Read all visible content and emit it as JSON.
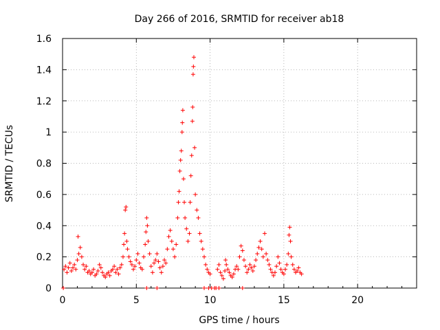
{
  "chart_data": {
    "type": "scatter",
    "title": "Day 266 of 2016, SRMTID for receiver ab18",
    "xlabel": "GPS time / hours",
    "ylabel": "SRMTID / TECUs",
    "xlim": [
      0,
      24
    ],
    "ylim": [
      0,
      1.6
    ],
    "xticks": [
      0,
      5,
      10,
      15,
      20
    ],
    "yticks": [
      0,
      0.2,
      0.4,
      0.6,
      0.8,
      1,
      1.2,
      1.4,
      1.6
    ],
    "xtick_labels": [
      "0",
      "5",
      "10",
      "15",
      "20"
    ],
    "ytick_labels": [
      "0",
      "0.2",
      "0.4",
      "0.6",
      "0.8",
      "1",
      "1.2",
      "1.4",
      "1.6"
    ],
    "grid": true,
    "marker": "plus",
    "color": "#ff0000",
    "series": [
      {
        "name": "SRMTID",
        "points": [
          [
            0.1,
            0.12
          ],
          [
            0.2,
            0.14
          ],
          [
            0.3,
            0.1
          ],
          [
            0.4,
            0.13
          ],
          [
            0.5,
            0.16
          ],
          [
            0.6,
            0.11
          ],
          [
            0.7,
            0.13
          ],
          [
            0.8,
            0.15
          ],
          [
            0.9,
            0.12
          ],
          [
            1.0,
            0.18
          ],
          [
            1.05,
            0.33
          ],
          [
            1.1,
            0.22
          ],
          [
            1.2,
            0.26
          ],
          [
            1.3,
            0.2
          ],
          [
            1.4,
            0.15
          ],
          [
            1.5,
            0.12
          ],
          [
            1.6,
            0.14
          ],
          [
            1.7,
            0.1
          ],
          [
            1.8,
            0.11
          ],
          [
            1.9,
            0.09
          ],
          [
            2.0,
            0.1
          ],
          [
            2.1,
            0.12
          ],
          [
            2.2,
            0.08
          ],
          [
            2.3,
            0.09
          ],
          [
            2.4,
            0.11
          ],
          [
            2.5,
            0.15
          ],
          [
            2.6,
            0.13
          ],
          [
            2.7,
            0.1
          ],
          [
            2.8,
            0.08
          ],
          [
            2.9,
            0.07
          ],
          [
            3.0,
            0.09
          ],
          [
            3.1,
            0.1
          ],
          [
            3.2,
            0.08
          ],
          [
            3.3,
            0.11
          ],
          [
            3.4,
            0.12
          ],
          [
            3.5,
            0.14
          ],
          [
            3.6,
            0.1
          ],
          [
            3.7,
            0.12
          ],
          [
            3.8,
            0.09
          ],
          [
            3.9,
            0.13
          ],
          [
            4.0,
            0.15
          ],
          [
            4.1,
            0.2
          ],
          [
            4.15,
            0.28
          ],
          [
            4.2,
            0.35
          ],
          [
            4.25,
            0.5
          ],
          [
            4.3,
            0.52
          ],
          [
            4.35,
            0.3
          ],
          [
            4.4,
            0.25
          ],
          [
            4.5,
            0.2
          ],
          [
            4.6,
            0.17
          ],
          [
            4.7,
            0.15
          ],
          [
            4.8,
            0.12
          ],
          [
            4.9,
            0.14
          ],
          [
            5.0,
            0.18
          ],
          [
            5.1,
            0.22
          ],
          [
            5.2,
            0.16
          ],
          [
            5.3,
            0.13
          ],
          [
            5.4,
            0.12
          ],
          [
            5.5,
            0.2
          ],
          [
            5.6,
            0.28
          ],
          [
            5.65,
            0.36
          ],
          [
            5.7,
            0.45
          ],
          [
            5.75,
            0.4
          ],
          [
            5.8,
            0.3
          ],
          [
            5.9,
            0.22
          ],
          [
            6.0,
            0.14
          ],
          [
            6.1,
            0.1
          ],
          [
            6.2,
            0.16
          ],
          [
            6.3,
            0.18
          ],
          [
            6.4,
            0.22
          ],
          [
            6.5,
            0.17
          ],
          [
            6.6,
            0.13
          ],
          [
            6.7,
            0.1
          ],
          [
            6.8,
            0.14
          ],
          [
            6.9,
            0.18
          ],
          [
            7.0,
            0.16
          ],
          [
            7.1,
            0.25
          ],
          [
            7.2,
            0.33
          ],
          [
            7.3,
            0.37
          ],
          [
            7.4,
            0.3
          ],
          [
            7.5,
            0.25
          ],
          [
            7.6,
            0.2
          ],
          [
            7.7,
            0.28
          ],
          [
            7.8,
            0.45
          ],
          [
            7.85,
            0.55
          ],
          [
            7.9,
            0.62
          ],
          [
            7.95,
            0.75
          ],
          [
            8.0,
            0.82
          ],
          [
            8.05,
            0.88
          ],
          [
            8.1,
            1.0
          ],
          [
            8.12,
            1.06
          ],
          [
            8.15,
            1.14
          ],
          [
            8.2,
            0.7
          ],
          [
            8.25,
            0.55
          ],
          [
            8.3,
            0.45
          ],
          [
            8.4,
            0.38
          ],
          [
            8.5,
            0.3
          ],
          [
            8.6,
            0.35
          ],
          [
            8.65,
            0.55
          ],
          [
            8.7,
            0.72
          ],
          [
            8.75,
            0.85
          ],
          [
            8.8,
            1.07
          ],
          [
            8.82,
            1.16
          ],
          [
            8.85,
            1.37
          ],
          [
            8.87,
            1.42
          ],
          [
            8.9,
            1.48
          ],
          [
            8.95,
            0.9
          ],
          [
            9.0,
            0.6
          ],
          [
            9.1,
            0.5
          ],
          [
            9.2,
            0.45
          ],
          [
            9.3,
            0.35
          ],
          [
            9.4,
            0.3
          ],
          [
            9.5,
            0.25
          ],
          [
            9.6,
            0.2
          ],
          [
            9.7,
            0.15
          ],
          [
            9.8,
            0.12
          ],
          [
            9.9,
            0.1
          ],
          [
            10.0,
            0.09
          ],
          [
            10.1,
            0.0
          ],
          [
            10.3,
            0.0
          ],
          [
            10.4,
            0.0
          ],
          [
            10.5,
            0.12
          ],
          [
            10.6,
            0.15
          ],
          [
            10.7,
            0.1
          ],
          [
            10.8,
            0.08
          ],
          [
            10.9,
            0.06
          ],
          [
            11.0,
            0.11
          ],
          [
            11.05,
            0.18
          ],
          [
            11.1,
            0.15
          ],
          [
            11.2,
            0.12
          ],
          [
            11.3,
            0.1
          ],
          [
            11.4,
            0.08
          ],
          [
            11.5,
            0.07
          ],
          [
            11.6,
            0.09
          ],
          [
            11.7,
            0.12
          ],
          [
            11.8,
            0.14
          ],
          [
            11.9,
            0.12
          ],
          [
            12.0,
            0.2
          ],
          [
            12.1,
            0.27
          ],
          [
            12.2,
            0.24
          ],
          [
            12.3,
            0.18
          ],
          [
            12.4,
            0.14
          ],
          [
            12.5,
            0.1
          ],
          [
            12.6,
            0.12
          ],
          [
            12.7,
            0.15
          ],
          [
            12.8,
            0.13
          ],
          [
            12.9,
            0.11
          ],
          [
            13.0,
            0.14
          ],
          [
            13.1,
            0.18
          ],
          [
            13.2,
            0.22
          ],
          [
            13.3,
            0.26
          ],
          [
            13.4,
            0.3
          ],
          [
            13.5,
            0.25
          ],
          [
            13.6,
            0.2
          ],
          [
            13.7,
            0.35
          ],
          [
            13.8,
            0.22
          ],
          [
            13.9,
            0.18
          ],
          [
            14.0,
            0.15
          ],
          [
            14.1,
            0.12
          ],
          [
            14.2,
            0.1
          ],
          [
            14.3,
            0.08
          ],
          [
            14.4,
            0.1
          ],
          [
            14.5,
            0.14
          ],
          [
            14.6,
            0.2
          ],
          [
            14.7,
            0.16
          ],
          [
            14.8,
            0.12
          ],
          [
            14.9,
            0.1
          ],
          [
            15.0,
            0.09
          ],
          [
            15.1,
            0.12
          ],
          [
            15.2,
            0.15
          ],
          [
            15.3,
            0.22
          ],
          [
            15.35,
            0.34
          ],
          [
            15.4,
            0.39
          ],
          [
            15.45,
            0.3
          ],
          [
            15.5,
            0.2
          ],
          [
            15.6,
            0.15
          ],
          [
            15.7,
            0.12
          ],
          [
            15.8,
            0.1
          ],
          [
            15.9,
            0.11
          ],
          [
            16.0,
            0.13
          ],
          [
            16.1,
            0.1
          ],
          [
            16.2,
            0.09
          ],
          [
            0.05,
            0.0
          ],
          [
            5.7,
            0.0
          ],
          [
            6.4,
            0.0
          ],
          [
            9.6,
            0.0
          ],
          [
            9.9,
            0.0
          ],
          [
            10.6,
            0.0
          ],
          [
            12.2,
            0.0
          ]
        ]
      }
    ]
  }
}
